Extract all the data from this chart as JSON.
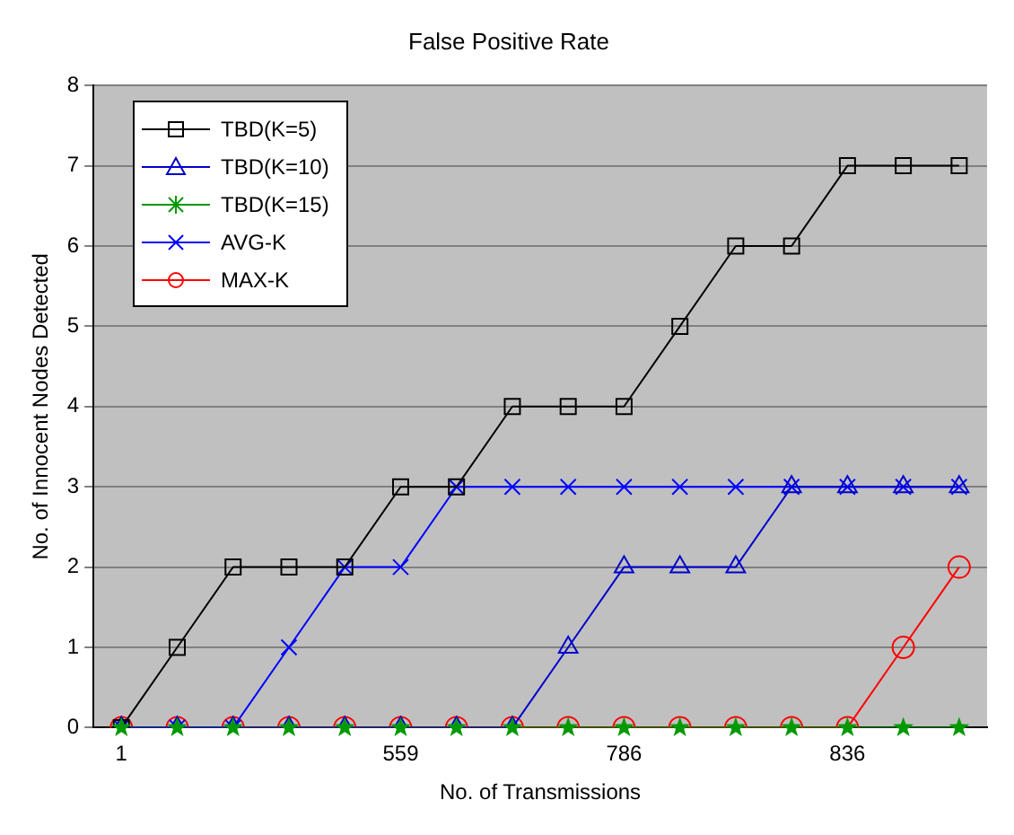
{
  "chart_data": {
    "type": "line",
    "title": "False Positive Rate",
    "xlabel": "No. of Transmissions",
    "ylabel": "No. of Innocent Nodes Detected",
    "categories": [
      "1",
      null,
      null,
      null,
      null,
      "559",
      null,
      null,
      null,
      "786",
      null,
      null,
      null,
      "836",
      null,
      null
    ],
    "series": [
      {
        "name": "TBD(K=5)",
        "color": "#000000",
        "marker": "square",
        "values": [
          0,
          1,
          2,
          2,
          2,
          3,
          3,
          4,
          4,
          4,
          5,
          6,
          6,
          7,
          7,
          7
        ]
      },
      {
        "name": "TBD(K=10)",
        "color": "#0000cc",
        "marker": "triangle",
        "values": [
          0,
          0,
          0,
          0,
          0,
          0,
          0,
          0,
          1,
          2,
          2,
          2,
          3,
          3,
          3,
          3
        ]
      },
      {
        "name": "TBD(K=15)",
        "color": "#009900",
        "marker": "star",
        "values": [
          0,
          0,
          0,
          0,
          0,
          0,
          0,
          0,
          0,
          0,
          0,
          0,
          0,
          0,
          0,
          0
        ]
      },
      {
        "name": "AVG-K",
        "color": "#0000ff",
        "marker": "cross",
        "values": [
          0,
          0,
          0,
          1,
          2,
          2,
          3,
          3,
          3,
          3,
          3,
          3,
          3,
          3,
          3,
          3
        ]
      },
      {
        "name": "MAX-K",
        "color": "#ff0000",
        "marker": "circle",
        "values": [
          0,
          0,
          0,
          0,
          0,
          0,
          0,
          0,
          0,
          0,
          0,
          0,
          0,
          0,
          1,
          2
        ]
      }
    ],
    "ylim": [
      0,
      8
    ],
    "yticks": [
      0,
      1,
      2,
      3,
      4,
      5,
      6,
      7,
      8
    ],
    "grid": "y",
    "legend": "top left"
  }
}
